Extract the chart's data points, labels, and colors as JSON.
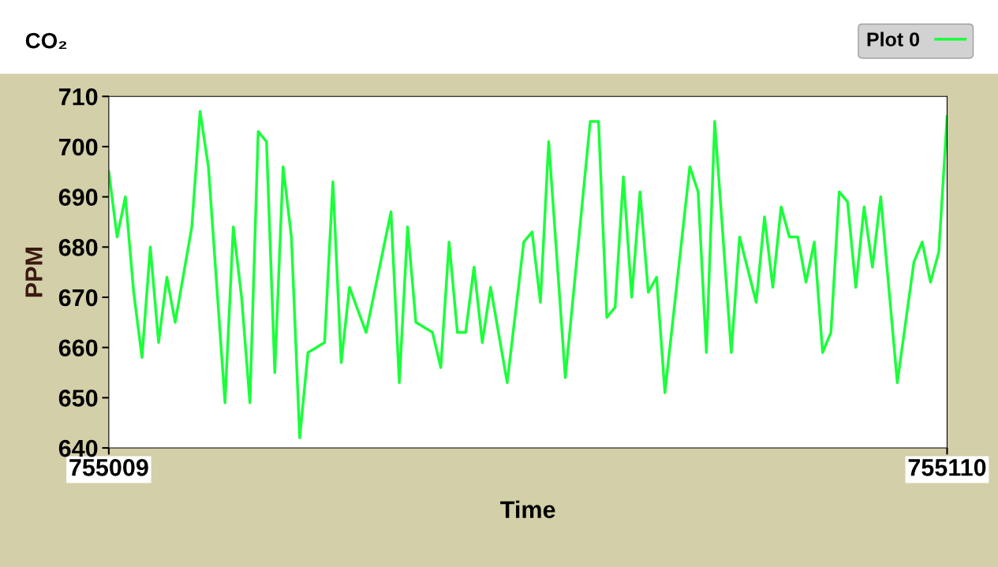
{
  "chart_data": {
    "type": "line",
    "title": "CO₂",
    "xlabel": "Time",
    "ylabel": "PPM",
    "xlim": [
      755009,
      755110
    ],
    "xticks": [
      755009,
      755110
    ],
    "ylim": [
      640,
      710
    ],
    "yticks": [
      640,
      650,
      660,
      670,
      680,
      690,
      700,
      710
    ],
    "grid": false,
    "legend": "top right",
    "marker": "none",
    "line_style": "solid",
    "series": [
      {
        "name": "Plot 0",
        "color": "#1aff3a",
        "x": [
          755009,
          755010,
          755011,
          755012,
          755013,
          755014,
          755015,
          755016,
          755017,
          755019,
          755020,
          755021,
          755023,
          755024,
          755025,
          755026,
          755027,
          755028,
          755029,
          755030,
          755031,
          755032,
          755033,
          755034,
          755035,
          755036,
          755037,
          755038,
          755040,
          755043,
          755044,
          755045,
          755046,
          755048,
          755049,
          755050,
          755051,
          755052,
          755053,
          755054,
          755055,
          755057,
          755059,
          755060,
          755061,
          755062,
          755064,
          755067,
          755068,
          755069,
          755070,
          755071,
          755072,
          755073,
          755074,
          755075,
          755076,
          755079,
          755080,
          755081,
          755082,
          755084,
          755085,
          755087,
          755088,
          755089,
          755090,
          755091,
          755092,
          755093,
          755094,
          755095,
          755096,
          755097,
          755098,
          755099,
          755100,
          755101,
          755102,
          755104,
          755106,
          755107,
          755108,
          755109,
          755110
        ],
        "values": [
          695,
          682,
          690,
          671,
          658,
          680,
          661,
          674,
          665,
          684,
          707,
          696,
          649,
          684,
          670,
          649,
          703,
          701,
          655,
          696,
          682,
          642,
          659,
          660,
          661,
          693,
          657,
          672,
          663,
          687,
          653,
          684,
          665,
          663,
          656,
          681,
          663,
          663,
          676,
          661,
          672,
          653,
          681,
          683,
          669,
          701,
          654,
          705,
          705,
          666,
          668,
          694,
          670,
          691,
          671,
          674,
          651,
          696,
          691,
          659,
          705,
          659,
          682,
          669,
          686,
          672,
          688,
          682,
          682,
          673,
          681,
          659,
          663,
          691,
          689,
          672,
          688,
          676,
          690,
          653,
          677,
          681,
          673,
          679,
          706
        ]
      }
    ]
  }
}
